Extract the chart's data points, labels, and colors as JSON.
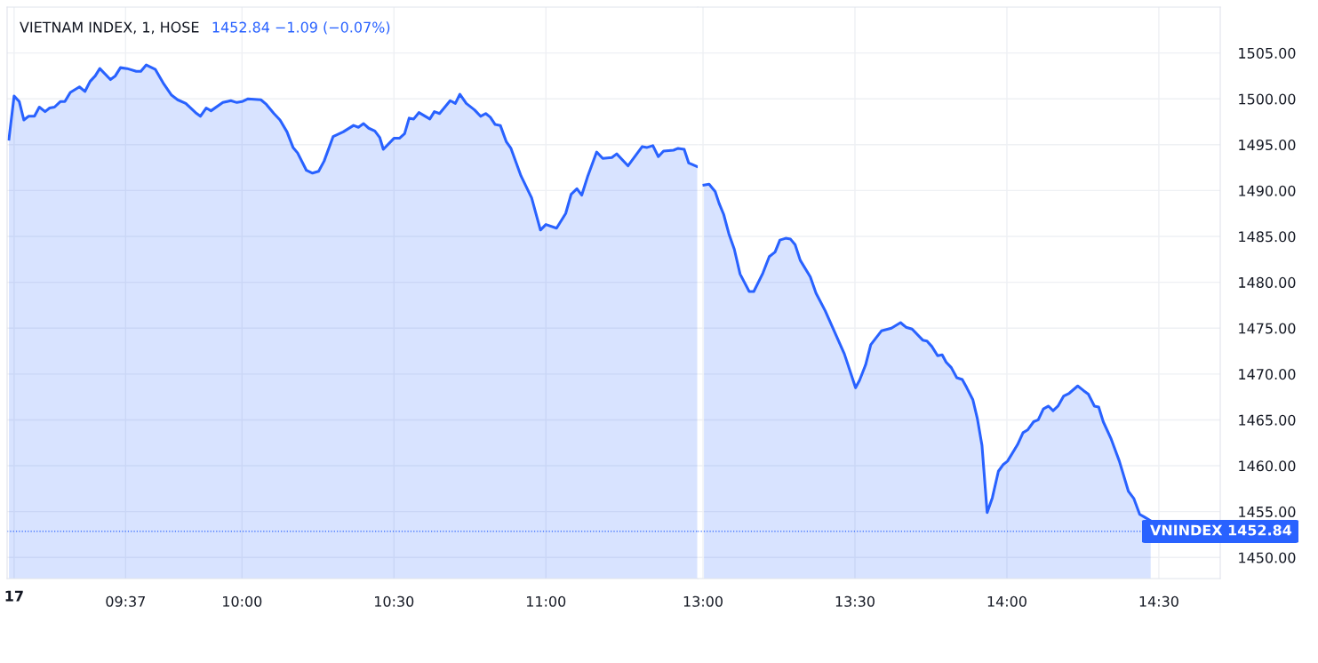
{
  "chart_data": [
    {
      "type": "area",
      "title": "VIETNAM INDEX, 1, HOSE",
      "subtitle": "1452.84 −1.09 (−0.07%)",
      "annotations": [
        "17"
      ],
      "x": [
        9.233,
        9.25,
        9.267,
        9.282,
        9.298,
        9.317,
        9.333,
        9.352,
        9.367,
        9.383,
        9.402,
        9.417,
        9.435,
        9.465,
        9.483,
        9.5,
        9.517,
        9.532,
        9.567,
        9.583,
        9.6,
        9.622,
        9.652,
        9.667,
        9.685,
        9.715,
        9.743,
        9.768,
        9.788,
        9.815,
        9.847,
        9.863,
        9.882,
        9.898,
        9.937,
        9.963,
        9.983,
        10.0,
        10.02,
        10.062,
        10.08,
        10.105,
        10.125,
        10.148,
        10.168,
        10.183,
        10.212,
        10.232,
        10.252,
        10.27,
        10.3,
        10.333,
        10.367,
        10.383,
        10.4,
        10.417,
        10.437,
        10.453,
        10.465,
        10.5,
        10.518,
        10.535,
        10.55,
        10.565,
        10.582,
        10.618,
        10.633,
        10.65,
        10.685,
        10.702,
        10.717,
        10.738,
        10.765,
        10.785,
        10.802,
        10.817,
        10.833,
        10.85,
        10.87,
        10.885,
        10.918,
        10.953,
        10.982,
        11.0,
        11.035,
        11.065,
        11.083,
        11.102,
        11.118,
        11.138,
        11.167,
        11.187,
        11.217,
        11.233,
        11.27,
        11.317,
        11.333,
        11.352,
        11.37,
        11.387,
        11.42,
        11.435,
        11.455,
        11.47,
        11.498
      ],
      "series": [
        {
          "color": "#2962ff",
          "values": [
            1495.6,
            1500.3,
            1499.7,
            1497.7,
            1498.1,
            1498.1,
            1499.1,
            1498.6,
            1499.0,
            1499.1,
            1499.7,
            1499.7,
            1500.7,
            1501.3,
            1500.8,
            1501.9,
            1502.5,
            1503.3,
            1502.1,
            1502.5,
            1503.4,
            1503.3,
            1503.0,
            1503.0,
            1503.7,
            1503.2,
            1501.6,
            1500.4,
            1499.9,
            1499.5,
            1498.5,
            1498.1,
            1499.0,
            1498.7,
            1499.6,
            1499.8,
            1499.6,
            1499.7,
            1500.0,
            1499.9,
            1499.4,
            1498.4,
            1497.7,
            1496.4,
            1494.7,
            1494.1,
            1492.2,
            1491.9,
            1492.1,
            1493.2,
            1495.9,
            1496.4,
            1497.1,
            1496.9,
            1497.3,
            1496.8,
            1496.5,
            1495.8,
            1494.5,
            1495.7,
            1495.7,
            1496.2,
            1497.9,
            1497.8,
            1498.5,
            1497.8,
            1498.6,
            1498.4,
            1499.8,
            1499.5,
            1500.5,
            1499.5,
            1498.8,
            1498.1,
            1498.4,
            1498.0,
            1497.2,
            1497.1,
            1495.3,
            1494.6,
            1491.6,
            1489.2,
            1485.7,
            1486.3,
            1485.9,
            1487.5,
            1489.6,
            1490.2,
            1489.5,
            1491.6,
            1494.2,
            1493.5,
            1493.6,
            1494.0,
            1492.7,
            1494.8,
            1494.7,
            1494.9,
            1493.7,
            1494.3,
            1494.4,
            1494.6,
            1494.5,
            1493.0,
            1492.6
          ]
        }
      ],
      "xlim": [
        9.227,
        11.5
      ],
      "xticks": [
        {
          "value": 9.25,
          "label": null
        },
        {
          "value": 9.617,
          "label": "09:37"
        },
        {
          "value": 10,
          "label": "10:00"
        },
        {
          "value": 10.5,
          "label": "10:30"
        },
        {
          "value": 11,
          "label": "11:00"
        }
      ],
      "ylim": [
        1447.7,
        1510.0
      ],
      "yticks": [
        1450,
        1455,
        1460,
        1465,
        1470,
        1475,
        1480,
        1485,
        1490,
        1495,
        1500,
        1505
      ],
      "tick_labels": "x",
      "ref_lines": [
        {
          "axis": "y",
          "value": 1452.84,
          "color": "#2962ff",
          "line_style": "dotted"
        }
      ],
      "grid": true,
      "legend": false,
      "marker": "none",
      "line_style": "solid"
    },
    {
      "type": "area",
      "x": [
        13.003,
        13.02,
        13.04,
        13.053,
        13.068,
        13.085,
        13.103,
        13.122,
        13.152,
        13.167,
        13.197,
        13.218,
        13.237,
        13.253,
        13.272,
        13.288,
        13.303,
        13.32,
        13.353,
        13.372,
        13.402,
        13.465,
        13.502,
        13.515,
        13.535,
        13.552,
        13.587,
        13.62,
        13.65,
        13.668,
        13.688,
        13.723,
        13.737,
        13.753,
        13.772,
        13.787,
        13.8,
        13.817,
        13.835,
        13.853,
        13.868,
        13.888,
        13.903,
        13.918,
        13.935,
        13.952,
        13.972,
        13.987,
        14.002,
        14.035,
        14.053,
        14.068,
        14.088,
        14.103,
        14.12,
        14.137,
        14.152,
        14.168,
        14.187,
        14.205,
        14.233,
        14.252,
        14.268,
        14.288,
        14.302,
        14.317,
        14.342,
        14.37,
        14.4,
        14.418,
        14.437,
        14.453,
        14.473
      ],
      "series": [
        {
          "color": "#2962ff",
          "values": [
            1490.6,
            1490.7,
            1489.9,
            1488.6,
            1487.4,
            1485.3,
            1483.6,
            1480.9,
            1479.0,
            1479.0,
            1481.0,
            1482.8,
            1483.3,
            1484.6,
            1484.8,
            1484.7,
            1484.1,
            1482.4,
            1480.6,
            1478.8,
            1476.9,
            1472.2,
            1468.5,
            1469.3,
            1471.0,
            1473.2,
            1474.7,
            1475.0,
            1475.6,
            1475.1,
            1474.9,
            1473.7,
            1473.6,
            1473.0,
            1472.0,
            1472.1,
            1471.3,
            1470.7,
            1469.6,
            1469.4,
            1468.5,
            1467.2,
            1465.1,
            1462.2,
            1454.9,
            1456.5,
            1459.4,
            1460.1,
            1460.5,
            1462.3,
            1463.6,
            1463.9,
            1464.8,
            1465.0,
            1466.2,
            1466.5,
            1466.0,
            1466.5,
            1467.6,
            1467.9,
            1468.7,
            1468.2,
            1467.8,
            1466.5,
            1466.4,
            1464.8,
            1463.0,
            1460.5,
            1457.2,
            1456.4,
            1454.7,
            1454.4,
            1454.0
          ]
        }
      ],
      "xlim": [
        12.983,
        14.702
      ],
      "xticks": [
        {
          "value": 13,
          "label": "13:00"
        },
        {
          "value": 13.5,
          "label": "13:30"
        },
        {
          "value": 14,
          "label": "14:00"
        },
        {
          "value": 14.5,
          "label": "14:30"
        }
      ],
      "ylim": [
        1447.7,
        1510.0
      ],
      "yticks": [
        {
          "value": 1450,
          "label": "1450.00"
        },
        {
          "value": 1455,
          "label": "1455.00"
        },
        {
          "value": 1460,
          "label": "1460.00"
        },
        {
          "value": 1465,
          "label": "1465.00"
        },
        {
          "value": 1470,
          "label": "1470.00"
        },
        {
          "value": 1475,
          "label": "1475.00"
        },
        {
          "value": 1480,
          "label": "1480.00"
        },
        {
          "value": 1485,
          "label": "1485.00"
        },
        {
          "value": 1490,
          "label": "1490.00"
        },
        {
          "value": 1495,
          "label": "1495.00"
        },
        {
          "value": 1500,
          "label": "1500.00"
        },
        {
          "value": 1505,
          "label": "1505.00"
        }
      ],
      "ref_lines": [
        {
          "axis": "y",
          "value": 1452.84,
          "label": "VNINDEX 1452.84",
          "color": "#2962ff",
          "line_style": "dotted"
        }
      ],
      "grid": true,
      "legend": false,
      "marker": "none",
      "line_style": "solid"
    }
  ]
}
